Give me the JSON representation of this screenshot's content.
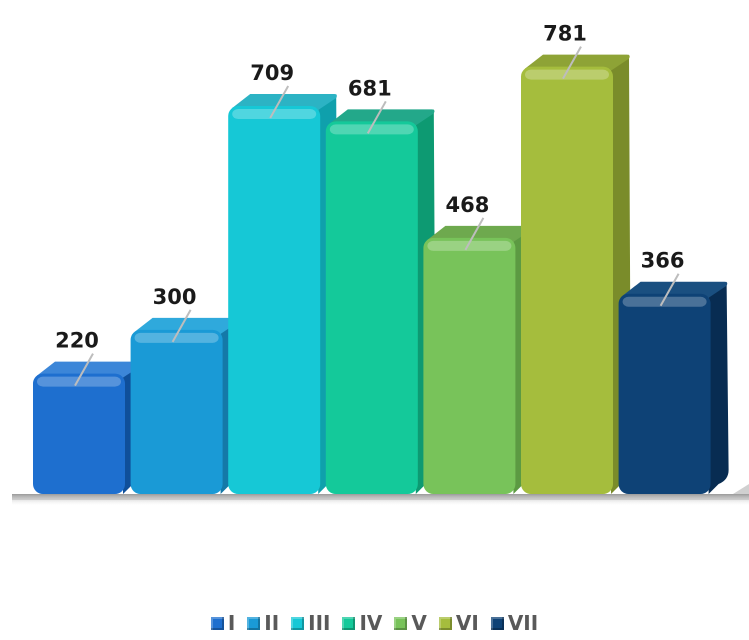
{
  "chart_data": {
    "type": "bar",
    "categories": [
      "I",
      "II",
      "III",
      "IV",
      "V",
      "VI",
      "VII"
    ],
    "values": [
      220,
      300,
      709,
      681,
      468,
      781,
      366
    ],
    "ylim": [
      0,
      800
    ],
    "grid": false,
    "legend_position": "bottom",
    "style": "3d-rounded-columns",
    "colors": [
      "#1e6fcf",
      "#1a9ad6",
      "#16c8d6",
      "#14c99a",
      "#78c35a",
      "#a5bd3d",
      "#0e4276"
    ],
    "side_colors": [
      "#0f4f9a",
      "#1479a8",
      "#0fa0ac",
      "#0d9a72",
      "#5c9a42",
      "#7a8c2a",
      "#082c52"
    ],
    "top_colors": [
      "#3c86d8",
      "#2fa9dc",
      "#2cb3c4",
      "#23a88a",
      "#6ea94e",
      "#8ea336",
      "#1a4f80"
    ]
  }
}
